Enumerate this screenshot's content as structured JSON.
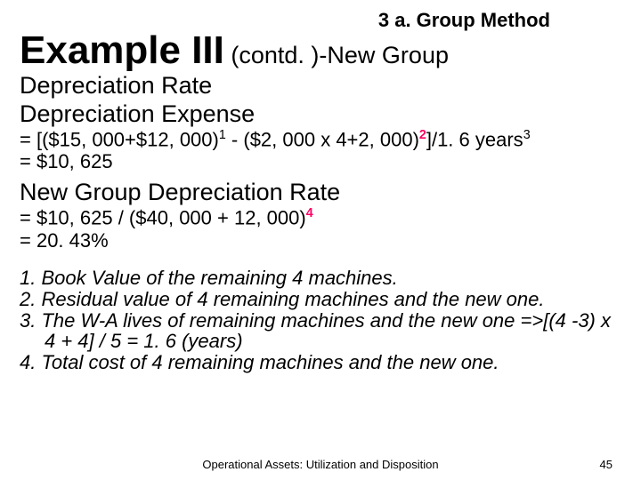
{
  "header": {
    "topic": "3 a. Group Method"
  },
  "title": {
    "main": "Example III",
    "sub": " (contd. )-New Group"
  },
  "section1": {
    "heading": "Depreciation Rate",
    "subheading": "Depreciation Expense",
    "formula_lhs": "= [($15, 000+$12, 000)",
    "sup1": "1",
    "formula_mid": " - ($2, 000 x 4+2, 000)",
    "sup2": "2",
    "formula_rhs": "]/1. 6 years",
    "sup3": "3",
    "result": "= $10, 625"
  },
  "section2": {
    "heading": "New Group Depreciation Rate",
    "formula": "= $10, 625 / ($40, 000 + 12, 000)",
    "sup4": "4",
    "result": "= 20. 43%"
  },
  "notes": {
    "n1": "1. Book Value of the remaining 4 machines.",
    "n2": "2. Residual value of 4 remaining machines and the new one.",
    "n3": "3. The W-A lives of remaining machines and the new one =>[(4 -3) x 4 + 4] / 5 = 1. 6 (years)",
    "n4": "4. Total cost of 4 remaining machines and the new one."
  },
  "footer": {
    "center": "Operational Assets: Utilization and Disposition",
    "page": "45"
  },
  "colors": {
    "accent": "#ff0066",
    "text": "#000000",
    "background": "#ffffff"
  }
}
